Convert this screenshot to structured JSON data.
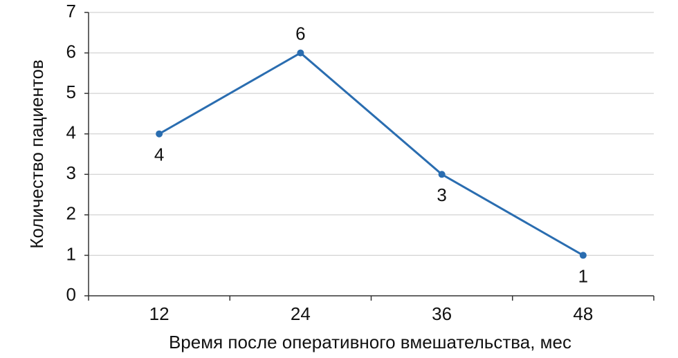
{
  "chart_data": {
    "type": "line",
    "x_label": "Время после оперативного вмешательства, мес",
    "y_label": "Количество пациентов",
    "categories": [
      "12",
      "24",
      "36",
      "48"
    ],
    "values": [
      4,
      6,
      3,
      1
    ],
    "color": "#2a6db0",
    "ylim": [
      0,
      7
    ],
    "yticks": [
      0,
      1,
      2,
      3,
      4,
      5,
      6,
      7
    ],
    "grid": true
  }
}
